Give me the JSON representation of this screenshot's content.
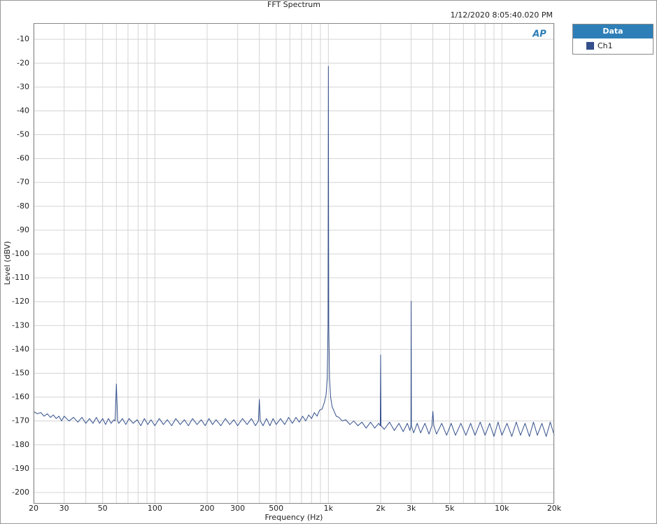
{
  "chart_data": {
    "type": "line",
    "title": "FFT Spectrum",
    "timestamp": "1/12/2020 8:05:40.020 PM",
    "logo": "AP",
    "x_label": "Frequency (Hz)",
    "y_label": "Level (dBV)",
    "legend_title": "Data",
    "legend": "right",
    "x_scale": "log",
    "grid": true,
    "xlim": [
      20,
      20000
    ],
    "ylim": [
      -204.7,
      -3.2
    ],
    "xticks": [
      20,
      30,
      50,
      100,
      200,
      300,
      500,
      {
        "value": 1000,
        "label": "1k"
      },
      {
        "value": 2000,
        "label": "2k"
      },
      {
        "value": 3000,
        "label": "3k"
      },
      {
        "value": 5000,
        "label": "5k"
      },
      {
        "value": 10000,
        "label": "10k"
      },
      {
        "value": 20000,
        "label": "20k"
      }
    ],
    "xminor": [
      40,
      60,
      70,
      80,
      90,
      400,
      600,
      700,
      800,
      900,
      4000,
      6000,
      7000,
      8000,
      9000
    ],
    "yticks": [
      -10,
      -20,
      -30,
      -40,
      -50,
      -60,
      -70,
      -80,
      -90,
      -100,
      -110,
      -120,
      -130,
      -140,
      -150,
      -160,
      -170,
      -180,
      -190,
      -200
    ],
    "x": [
      20,
      21,
      22,
      23,
      24,
      25,
      26,
      27,
      28,
      29,
      30,
      32,
      34,
      36,
      38,
      40,
      42,
      44,
      46,
      48,
      50,
      52,
      54,
      56,
      58,
      59,
      60,
      61,
      62,
      65,
      68,
      71,
      75,
      79,
      83,
      87,
      91,
      95,
      100,
      106,
      112,
      118,
      125,
      132,
      140,
      148,
      156,
      165,
      175,
      185,
      195,
      205,
      215,
      225,
      240,
      255,
      270,
      285,
      300,
      320,
      340,
      360,
      380,
      395,
      400,
      405,
      420,
      440,
      460,
      480,
      500,
      530,
      560,
      590,
      620,
      650,
      680,
      710,
      740,
      770,
      800,
      830,
      860,
      890,
      920,
      950,
      970,
      985,
      995,
      1000,
      1005,
      1015,
      1030,
      1050,
      1080,
      1110,
      1150,
      1200,
      1260,
      1330,
      1400,
      1480,
      1560,
      1650,
      1750,
      1850,
      1950,
      1990,
      2000,
      2010,
      2100,
      2250,
      2400,
      2550,
      2700,
      2850,
      2950,
      2990,
      3000,
      3010,
      3100,
      3250,
      3400,
      3600,
      3800,
      3950,
      4000,
      4050,
      4200,
      4500,
      4800,
      5100,
      5400,
      5800,
      6200,
      6600,
      7000,
      7500,
      8000,
      8500,
      9000,
      9500,
      10000,
      10700,
      11400,
      12100,
      12800,
      13600,
      14400,
      15200,
      16000,
      17000,
      18000,
      19000,
      20000
    ],
    "series": [
      {
        "name": "Ch1",
        "color": "#34508c",
        "values": [
          -166,
          -167,
          -166.5,
          -168,
          -167,
          -168.5,
          -167.5,
          -169,
          -168,
          -170,
          -168,
          -170,
          -168.5,
          -170.5,
          -168.5,
          -171,
          -169,
          -171,
          -168.5,
          -171,
          -169,
          -171.5,
          -169,
          -171,
          -169.5,
          -170,
          -154.5,
          -170,
          -171,
          -169,
          -171.5,
          -169,
          -171,
          -169.5,
          -172,
          -169,
          -171.5,
          -169.5,
          -172,
          -169,
          -171.5,
          -169.5,
          -172,
          -169,
          -171.5,
          -169.5,
          -172,
          -169,
          -171.5,
          -169.5,
          -172,
          -169,
          -171.5,
          -169.5,
          -172,
          -169,
          -171.5,
          -169.5,
          -172,
          -169,
          -171.5,
          -169,
          -172,
          -170,
          -161,
          -170,
          -172,
          -169,
          -172,
          -169,
          -171.5,
          -169,
          -171.5,
          -168.5,
          -171,
          -168.5,
          -170.5,
          -168,
          -170,
          -167.5,
          -169,
          -166.5,
          -168,
          -165.5,
          -165,
          -162,
          -159,
          -152,
          -130,
          -21.3,
          -130,
          -152,
          -160,
          -164,
          -166,
          -168,
          -168.5,
          -170,
          -169.5,
          -171.5,
          -170,
          -172,
          -170.5,
          -173,
          -170.5,
          -173,
          -171,
          -172,
          -142.3,
          -172,
          -173.5,
          -170.5,
          -174,
          -171,
          -174.5,
          -171,
          -174,
          -172,
          -119.8,
          -172,
          -175,
          -171,
          -175,
          -171,
          -175.5,
          -172,
          -166,
          -172,
          -175.5,
          -171,
          -176,
          -171,
          -176,
          -171,
          -176,
          -171,
          -176,
          -170.5,
          -176,
          -171,
          -176.5,
          -170.5,
          -176,
          -171,
          -176.5,
          -170.5,
          -176,
          -171,
          -176.5,
          -170.5,
          -176,
          -171,
          -176.5,
          -170.5,
          -176
        ]
      }
    ]
  }
}
